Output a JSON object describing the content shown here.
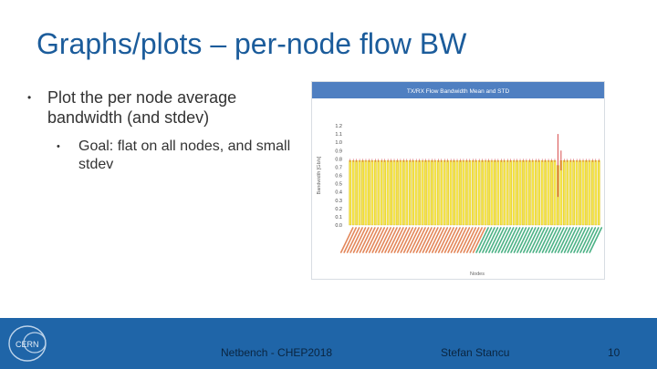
{
  "slide": {
    "title": "Graphs/plots – per-node flow BW",
    "bullets": [
      {
        "text": "Plot the per node average bandwidth (and stdev)"
      },
      {
        "text": "Goal: flat on all nodes, and small stdev"
      }
    ]
  },
  "footer": {
    "event": "Netbench - CHEP2018",
    "author": "Stefan Stancu",
    "page": "10",
    "logo_text": "CERN"
  },
  "colors": {
    "title": "#1b5c9b",
    "footer_bg": "#1f65a8",
    "chart_header": "#4f7fc1",
    "bar_fill": "#f6e64a",
    "bar_stroke": "#c9a800",
    "error_bar": "#d43b3b",
    "label_group_a": "#e07b4a",
    "label_group_b": "#3aaa7a"
  },
  "chart_data": {
    "type": "bar",
    "title": "TX/RX Flow Bandwidth Mean and STD",
    "xlabel": "Nodes",
    "ylabel": "Bandwidth [Gb/s]",
    "ylim": [
      0,
      1.2
    ],
    "yticks": [
      "0.0",
      "0.1",
      "0.2",
      "0.3",
      "0.4",
      "0.5",
      "0.6",
      "0.7",
      "0.8",
      "0.9",
      "1.0",
      "1.1",
      "1.2"
    ],
    "node_count": 80,
    "node_group_split": 43,
    "mean_value": 0.78,
    "stdev_value": 0.02,
    "outliers": [
      {
        "index": 66,
        "mean": 0.72,
        "stdev": 0.38
      },
      {
        "index": 67,
        "mean": 0.78,
        "stdev": 0.12
      }
    ]
  }
}
